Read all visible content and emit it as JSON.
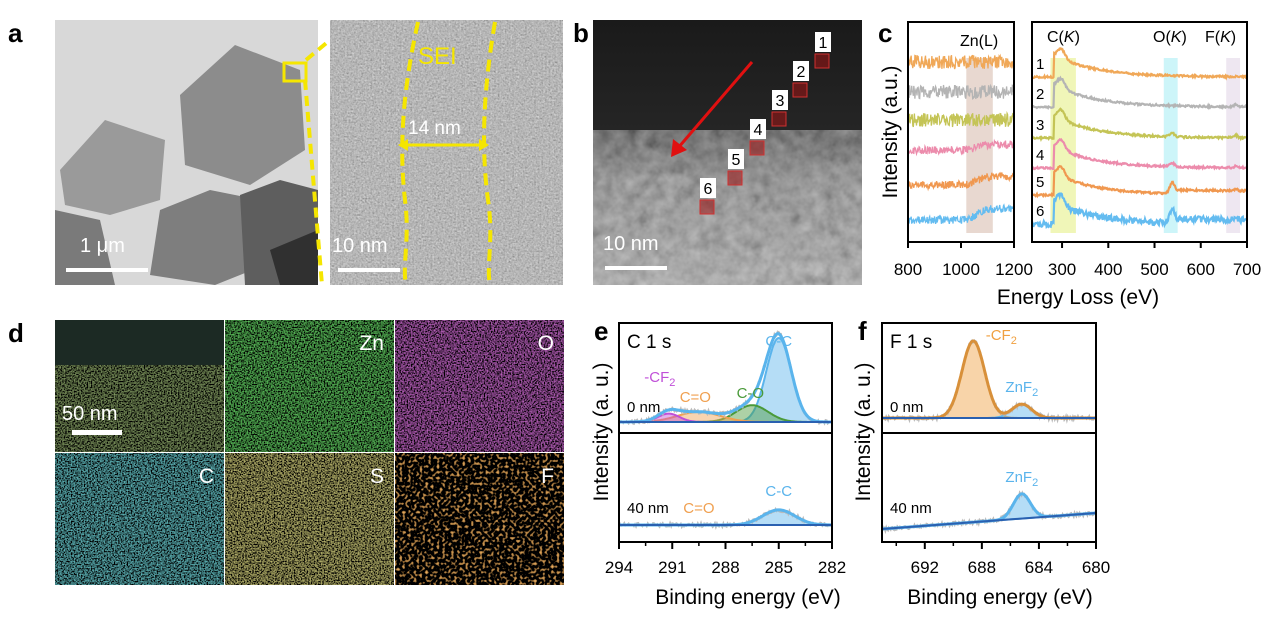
{
  "panels": {
    "a": {
      "label": "a",
      "scale_left": "1 μm",
      "scale_right": "10 nm",
      "sei_label": "SEI",
      "thickness": "14 nm"
    },
    "b": {
      "label": "b",
      "scale": "10 nm",
      "points": [
        "1",
        "2",
        "3",
        "4",
        "5",
        "6"
      ]
    },
    "c": {
      "label": "c"
    },
    "d": {
      "label": "d",
      "scale": "50 nm",
      "maps": [
        "",
        "Zn",
        "O",
        "C",
        "S",
        "F"
      ],
      "map_colors": [
        "#6a9a3a",
        "#2bd02b",
        "#c030c8",
        "#30c0c8",
        "#c8c040",
        "#f07820"
      ]
    },
    "e": {
      "label": "e"
    },
    "f": {
      "label": "f"
    }
  },
  "chart_data": [
    {
      "id": "c",
      "type": "line",
      "xlabel": "Energy Loss (eV)",
      "ylabel": "Intensity (a.u.)",
      "subplots": [
        {
          "xlim": [
            800,
            1200
          ],
          "ticks": [
            800,
            1000,
            1200
          ],
          "edges": [
            {
              "name": "Zn(L)",
              "range": [
                1020,
                1120
              ],
              "color": "#e8d8d0"
            }
          ]
        },
        {
          "xlim": [
            235,
            700
          ],
          "ticks": [
            300,
            400,
            500,
            600,
            700
          ],
          "edges": [
            {
              "name": "C(K)",
              "name_main": "C(",
              "name_it": "K",
              "name_end": ")",
              "range": [
                275,
                330
              ],
              "color": "#eef5b0"
            },
            {
              "name": "O(K)",
              "name_main": "O(",
              "name_it": "K",
              "name_end": ")",
              "range": [
                520,
                550
              ],
              "color": "#c8f4f8"
            },
            {
              "name": "F(K)",
              "name_main": "F(",
              "name_it": "K",
              "name_end": ")",
              "range": [
                655,
                685
              ],
              "color": "#ece4f0"
            }
          ]
        }
      ],
      "series": [
        {
          "name": "1",
          "color": "#f0a858",
          "zn_step": 0.0,
          "o_peak": 0.0,
          "f_peak": 0.0
        },
        {
          "name": "2",
          "color": "#b4b4b4",
          "zn_step": 0.0,
          "o_peak": 0.0,
          "f_peak": 0.3
        },
        {
          "name": "3",
          "color": "#c4c456",
          "zn_step": 0.0,
          "o_peak": 0.3,
          "f_peak": 0.3
        },
        {
          "name": "4",
          "color": "#ec8cac",
          "zn_step": 0.4,
          "o_peak": 0.3,
          "f_peak": 0.2
        },
        {
          "name": "5",
          "color": "#f09850",
          "zn_step": 0.6,
          "o_peak": 0.8,
          "f_peak": 0.2
        },
        {
          "name": "6",
          "color": "#64bcf0",
          "zn_step": 0.8,
          "o_peak": 1.0,
          "f_peak": 0.2
        }
      ]
    },
    {
      "id": "e",
      "type": "line",
      "title": "C 1 s",
      "xlabel": "Binding energy (eV)",
      "ylabel": "Intensity (a. u.)",
      "xlim": [
        294,
        282
      ],
      "ticks": [
        294,
        291,
        288,
        285,
        282
      ],
      "panels": [
        {
          "depth": "0 nm",
          "peaks": [
            {
              "name": "C-C",
              "center": 285.0,
              "height": 1.0,
              "sigma": 0.7,
              "color": "#5ab4ec"
            },
            {
              "name": "C-O",
              "center": 286.5,
              "height": 0.2,
              "sigma": 0.9,
              "color": "#4a9a3a"
            },
            {
              "name": "C=O",
              "center": 289.5,
              "height": 0.12,
              "sigma": 1.2,
              "color": "#f0a050"
            },
            {
              "name": "-CF2",
              "label_main": "-CF",
              "label_sub": "2",
              "center": 291.2,
              "height": 0.1,
              "sigma": 0.6,
              "color": "#c050d8"
            }
          ]
        },
        {
          "depth": "40 nm",
          "peaks": [
            {
              "name": "C-C",
              "center": 285.0,
              "height": 0.18,
              "sigma": 0.9,
              "color": "#5ab4ec"
            },
            {
              "name": "C=O",
              "center": 289.5,
              "height": 0.0,
              "sigma": 1.2,
              "color": "#f0a050"
            }
          ]
        }
      ]
    },
    {
      "id": "f",
      "type": "line",
      "title": "F 1 s",
      "xlabel": "Binding energy (eV)",
      "ylabel": "Intensity (a. u.)",
      "xlim": [
        695,
        680
      ],
      "ticks": [
        692,
        688,
        684,
        680
      ],
      "panels": [
        {
          "depth": "0 nm",
          "peaks": [
            {
              "name": "-CF2",
              "label_main": "-CF",
              "label_sub": "2",
              "center": 688.6,
              "height": 1.0,
              "sigma": 0.8,
              "color": "#f0a040"
            },
            {
              "name": "ZnF2",
              "label_main": "ZnF",
              "label_sub": "2",
              "center": 685.2,
              "height": 0.18,
              "sigma": 0.7,
              "color": "#5ab4ec"
            }
          ]
        },
        {
          "depth": "40 nm",
          "peaks": [
            {
              "name": "ZnF2",
              "label_main": "ZnF",
              "label_sub": "2",
              "center": 685.2,
              "height": 0.32,
              "sigma": 0.6,
              "color": "#5ab4ec"
            }
          ]
        }
      ]
    }
  ]
}
